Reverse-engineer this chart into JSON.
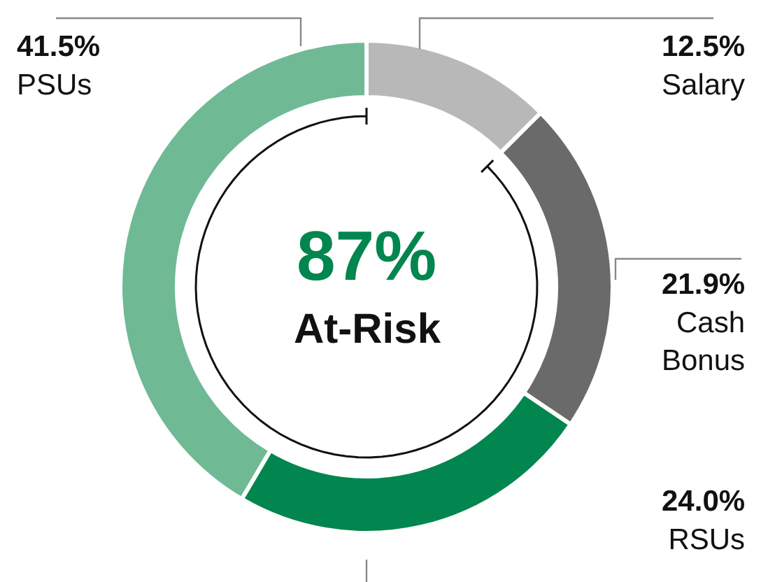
{
  "chart_data": {
    "type": "donut",
    "categories": [
      "Salary",
      "Cash Bonus",
      "RSUs",
      "PSUs"
    ],
    "values": [
      12.5,
      21.9,
      24.0,
      41.5
    ],
    "value_labels": [
      "12.5%",
      "21.9%",
      "24.0%",
      "41.5%"
    ],
    "colors": [
      "#b8b8b8",
      "#6a6a6a",
      "#00864e",
      "#70b995"
    ],
    "annotations": [
      "87%",
      "At-Risk"
    ],
    "legend": false
  }
}
